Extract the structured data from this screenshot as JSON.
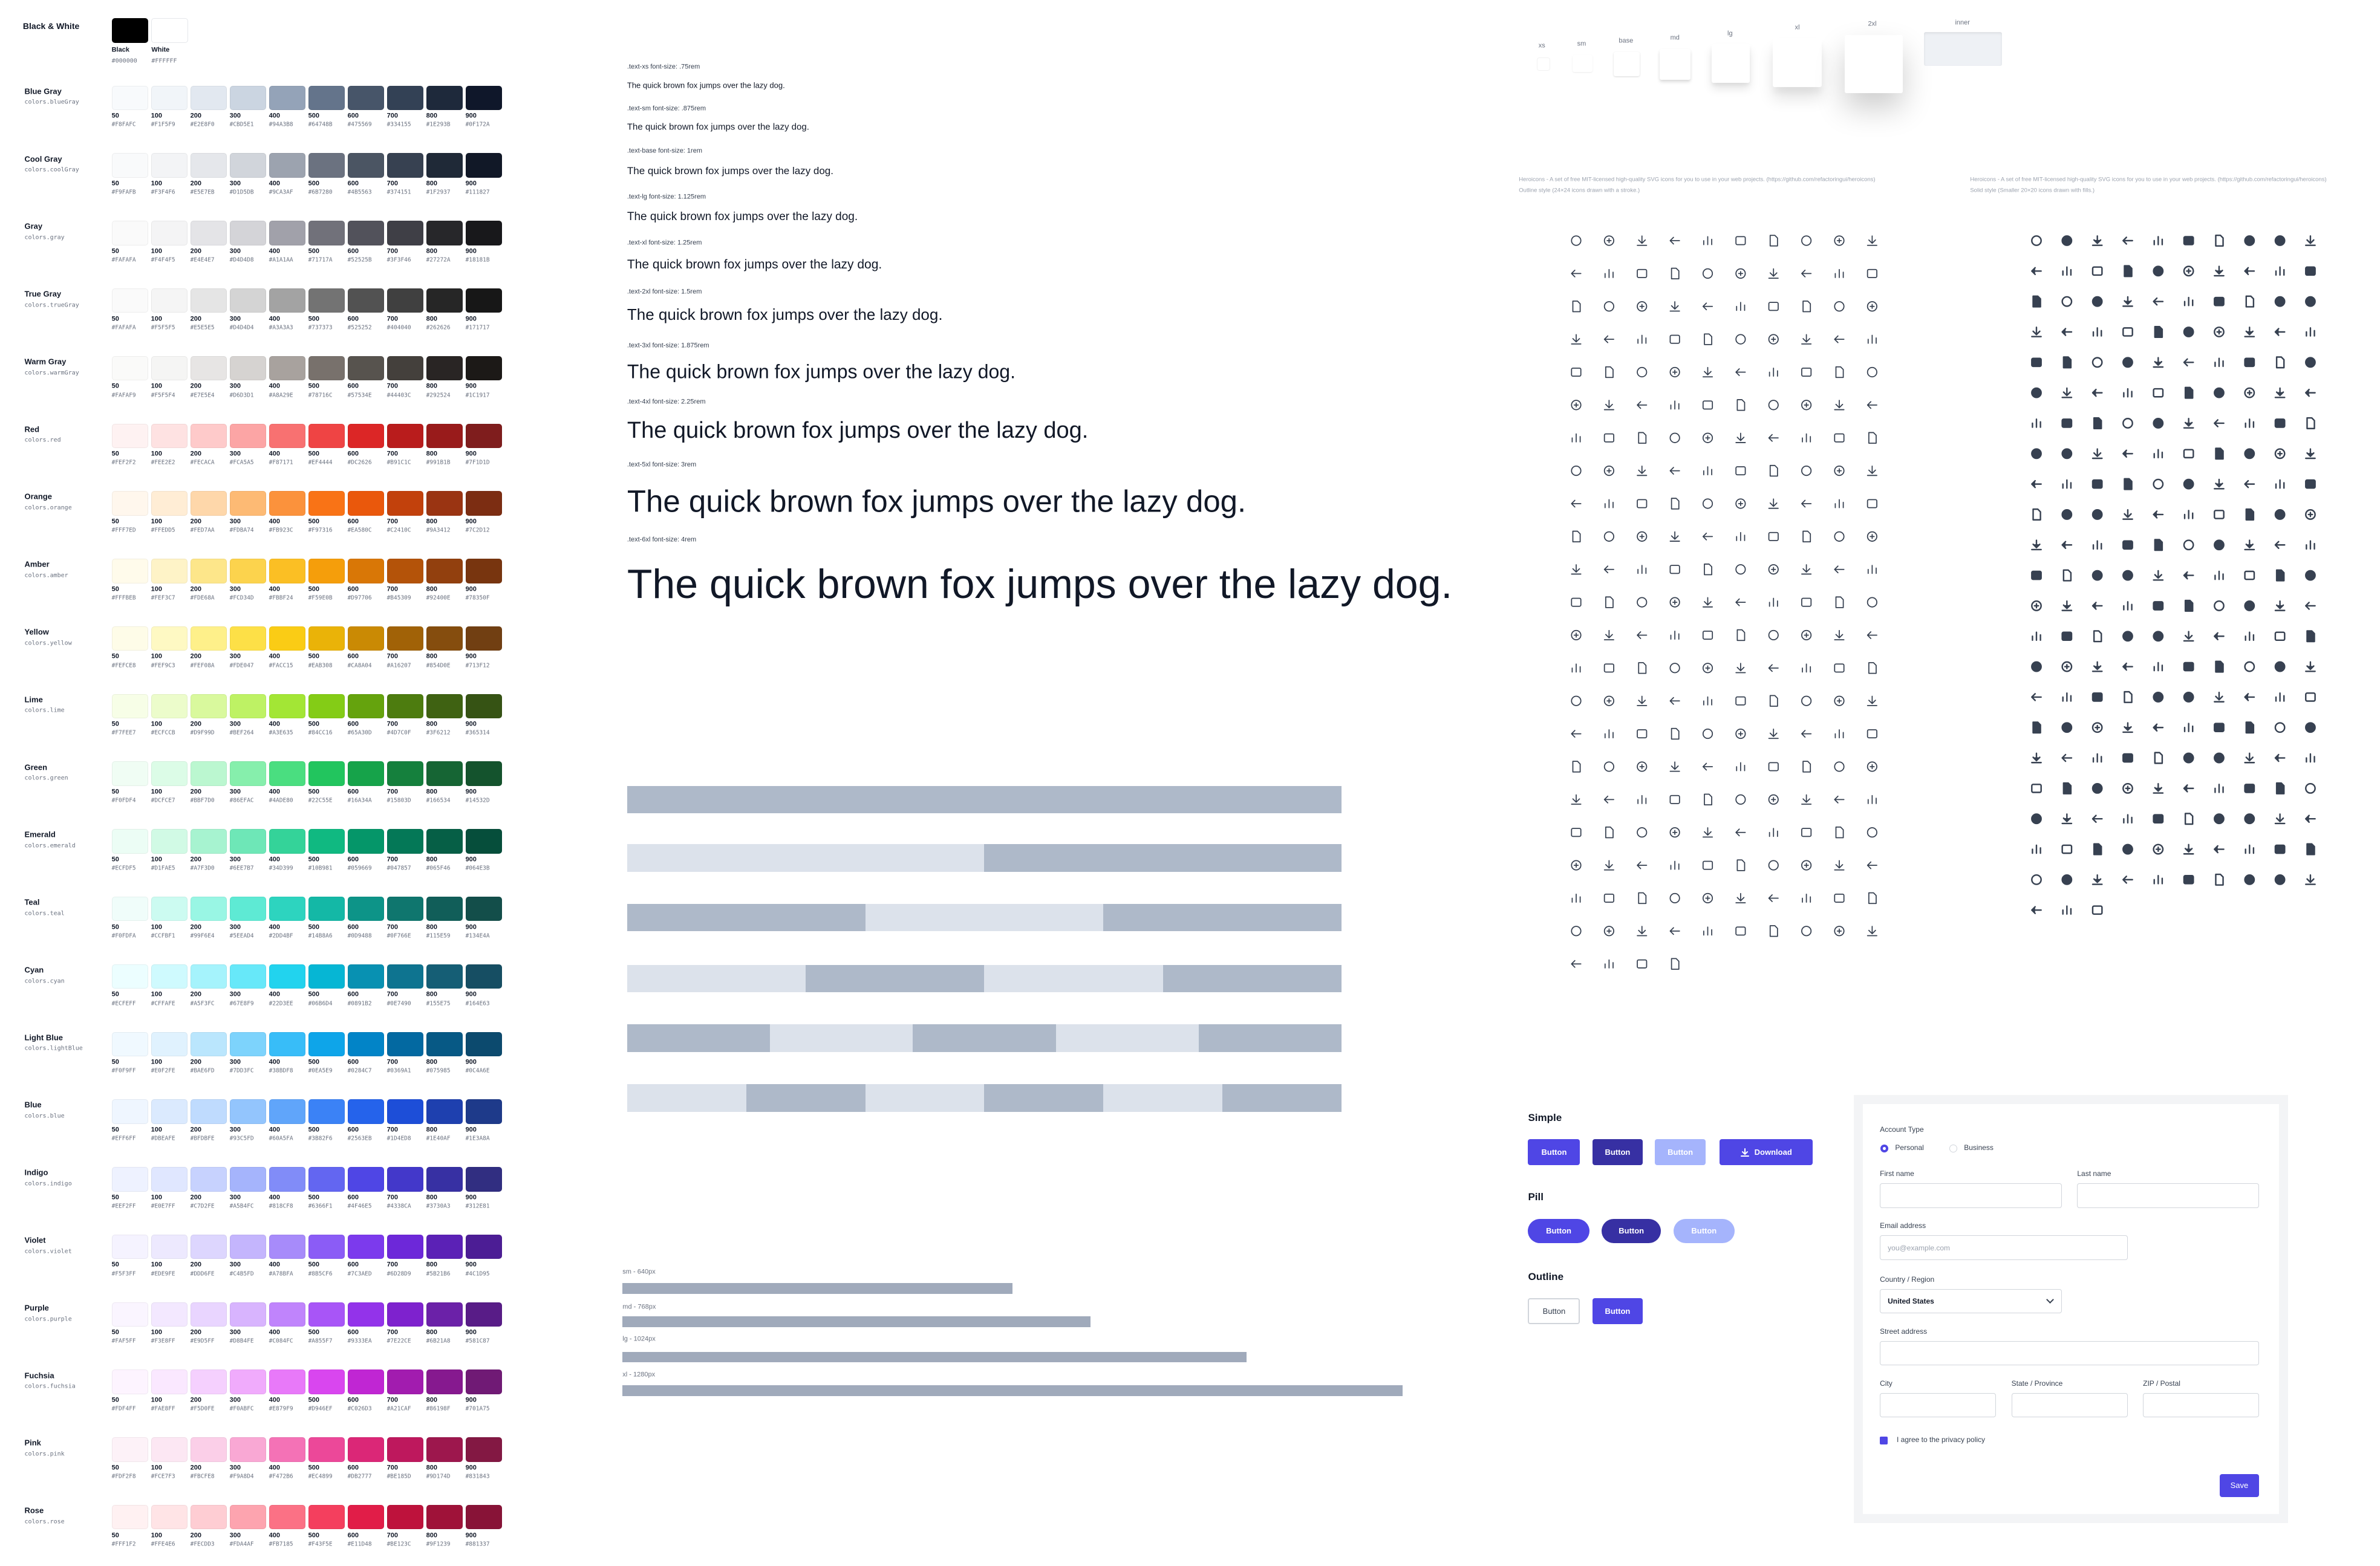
{
  "black_white": {
    "title": "Black & White",
    "swatches": [
      {
        "name": "Black",
        "hex": "#000000"
      },
      {
        "name": "White",
        "hex": "#FFFFFF"
      }
    ]
  },
  "shade_labels": [
    "50",
    "100",
    "200",
    "300",
    "400",
    "500",
    "600",
    "700",
    "800",
    "900"
  ],
  "palettes": [
    {
      "name": "Blue Gray",
      "token": "colors.blueGray",
      "hexes": [
        "#F8FAFC",
        "#F1F5F9",
        "#E2E8F0",
        "#CBD5E1",
        "#94A3B8",
        "#64748B",
        "#475569",
        "#334155",
        "#1E293B",
        "#0F172A"
      ]
    },
    {
      "name": "Cool Gray",
      "token": "colors.coolGray",
      "hexes": [
        "#F9FAFB",
        "#F3F4F6",
        "#E5E7EB",
        "#D1D5DB",
        "#9CA3AF",
        "#6B7280",
        "#4B5563",
        "#374151",
        "#1F2937",
        "#111827"
      ]
    },
    {
      "name": "Gray",
      "token": "colors.gray",
      "hexes": [
        "#FAFAFA",
        "#F4F4F5",
        "#E4E4E7",
        "#D4D4D8",
        "#A1A1AA",
        "#71717A",
        "#52525B",
        "#3F3F46",
        "#27272A",
        "#18181B"
      ]
    },
    {
      "name": "True Gray",
      "token": "colors.trueGray",
      "hexes": [
        "#FAFAFA",
        "#F5F5F5",
        "#E5E5E5",
        "#D4D4D4",
        "#A3A3A3",
        "#737373",
        "#525252",
        "#404040",
        "#262626",
        "#171717"
      ]
    },
    {
      "name": "Warm Gray",
      "token": "colors.warmGray",
      "hexes": [
        "#FAFAF9",
        "#F5F5F4",
        "#E7E5E4",
        "#D6D3D1",
        "#A8A29E",
        "#78716C",
        "#57534E",
        "#44403C",
        "#292524",
        "#1C1917"
      ]
    },
    {
      "name": "Red",
      "token": "colors.red",
      "hexes": [
        "#FEF2F2",
        "#FEE2E2",
        "#FECACA",
        "#FCA5A5",
        "#F87171",
        "#EF4444",
        "#DC2626",
        "#B91C1C",
        "#991B1B",
        "#7F1D1D"
      ]
    },
    {
      "name": "Orange",
      "token": "colors.orange",
      "hexes": [
        "#FFF7ED",
        "#FFEDD5",
        "#FED7AA",
        "#FDBA74",
        "#FB923C",
        "#F97316",
        "#EA580C",
        "#C2410C",
        "#9A3412",
        "#7C2D12"
      ]
    },
    {
      "name": "Amber",
      "token": "colors.amber",
      "hexes": [
        "#FFFBEB",
        "#FEF3C7",
        "#FDE68A",
        "#FCD34D",
        "#FBBF24",
        "#F59E0B",
        "#D97706",
        "#B45309",
        "#92400E",
        "#78350F"
      ]
    },
    {
      "name": "Yellow",
      "token": "colors.yellow",
      "hexes": [
        "#FEFCE8",
        "#FEF9C3",
        "#FEF08A",
        "#FDE047",
        "#FACC15",
        "#EAB308",
        "#CA8A04",
        "#A16207",
        "#854D0E",
        "#713F12"
      ]
    },
    {
      "name": "Lime",
      "token": "colors.lime",
      "hexes": [
        "#F7FEE7",
        "#ECFCCB",
        "#D9F99D",
        "#BEF264",
        "#A3E635",
        "#84CC16",
        "#65A30D",
        "#4D7C0F",
        "#3F6212",
        "#365314"
      ]
    },
    {
      "name": "Green",
      "token": "colors.green",
      "hexes": [
        "#F0FDF4",
        "#DCFCE7",
        "#BBF7D0",
        "#86EFAC",
        "#4ADE80",
        "#22C55E",
        "#16A34A",
        "#15803D",
        "#166534",
        "#14532D"
      ]
    },
    {
      "name": "Emerald",
      "token": "colors.emerald",
      "hexes": [
        "#ECFDF5",
        "#D1FAE5",
        "#A7F3D0",
        "#6EE7B7",
        "#34D399",
        "#10B981",
        "#059669",
        "#047857",
        "#065F46",
        "#064E3B"
      ]
    },
    {
      "name": "Teal",
      "token": "colors.teal",
      "hexes": [
        "#F0FDFA",
        "#CCFBF1",
        "#99F6E4",
        "#5EEAD4",
        "#2DD4BF",
        "#14B8A6",
        "#0D9488",
        "#0F766E",
        "#115E59",
        "#134E4A"
      ]
    },
    {
      "name": "Cyan",
      "token": "colors.cyan",
      "hexes": [
        "#ECFEFF",
        "#CFFAFE",
        "#A5F3FC",
        "#67E8F9",
        "#22D3EE",
        "#06B6D4",
        "#0891B2",
        "#0E7490",
        "#155E75",
        "#164E63"
      ]
    },
    {
      "name": "Light Blue",
      "token": "colors.lightBlue",
      "hexes": [
        "#F0F9FF",
        "#E0F2FE",
        "#BAE6FD",
        "#7DD3FC",
        "#38BDF8",
        "#0EA5E9",
        "#0284C7",
        "#0369A1",
        "#075985",
        "#0C4A6E"
      ]
    },
    {
      "name": "Blue",
      "token": "colors.blue",
      "hexes": [
        "#EFF6FF",
        "#DBEAFE",
        "#BFDBFE",
        "#93C5FD",
        "#60A5FA",
        "#3B82F6",
        "#2563EB",
        "#1D4ED8",
        "#1E40AF",
        "#1E3A8A"
      ]
    },
    {
      "name": "Indigo",
      "token": "colors.indigo",
      "hexes": [
        "#EEF2FF",
        "#E0E7FF",
        "#C7D2FE",
        "#A5B4FC",
        "#818CF8",
        "#6366F1",
        "#4F46E5",
        "#4338CA",
        "#3730A3",
        "#312E81"
      ]
    },
    {
      "name": "Violet",
      "token": "colors.violet",
      "hexes": [
        "#F5F3FF",
        "#EDE9FE",
        "#DDD6FE",
        "#C4B5FD",
        "#A78BFA",
        "#8B5CF6",
        "#7C3AED",
        "#6D28D9",
        "#5B21B6",
        "#4C1D95"
      ]
    },
    {
      "name": "Purple",
      "token": "colors.purple",
      "hexes": [
        "#FAF5FF",
        "#F3E8FF",
        "#E9D5FF",
        "#D8B4FE",
        "#C084FC",
        "#A855F7",
        "#9333EA",
        "#7E22CE",
        "#6B21A8",
        "#581C87"
      ]
    },
    {
      "name": "Fuchsia",
      "token": "colors.fuchsia",
      "hexes": [
        "#FDF4FF",
        "#FAE8FF",
        "#F5D0FE",
        "#F0ABFC",
        "#E879F9",
        "#D946EF",
        "#C026D3",
        "#A21CAF",
        "#86198F",
        "#701A75"
      ]
    },
    {
      "name": "Pink",
      "token": "colors.pink",
      "hexes": [
        "#FDF2F8",
        "#FCE7F3",
        "#FBCFE8",
        "#F9A8D4",
        "#F472B6",
        "#EC4899",
        "#DB2777",
        "#BE185D",
        "#9D174D",
        "#831843"
      ]
    },
    {
      "name": "Rose",
      "token": "colors.rose",
      "hexes": [
        "#FFF1F2",
        "#FFE4E6",
        "#FECDD3",
        "#FDA4AF",
        "#FB7185",
        "#F43F5E",
        "#E11D48",
        "#BE123C",
        "#9F1239",
        "#881337"
      ]
    }
  ],
  "typography": [
    {
      "label": ".text-xs font-size: .75rem",
      "sample": "The quick brown fox jumps over the lazy dog."
    },
    {
      "label": ".text-sm font-size: .875rem",
      "sample": "The quick brown fox jumps over the lazy dog."
    },
    {
      "label": ".text-base font-size: 1rem",
      "sample": "The quick brown fox jumps over the lazy dog."
    },
    {
      "label": ".text-lg font-size: 1.125rem",
      "sample": "The quick brown fox jumps over the lazy dog."
    },
    {
      "label": ".text-xl font-size: 1.25rem",
      "sample": "The quick brown fox jumps over the lazy dog."
    },
    {
      "label": ".text-2xl font-size: 1.5rem",
      "sample": "The quick brown fox jumps over the lazy dog."
    },
    {
      "label": ".text-3xl font-size: 1.875rem",
      "sample": "The quick brown fox jumps over the lazy dog."
    },
    {
      "label": ".text-4xl font-size: 2.25rem",
      "sample": "The quick brown fox jumps over the lazy dog."
    },
    {
      "label": ".text-5xl font-size: 3rem",
      "sample": "The quick brown fox jumps over the lazy dog."
    },
    {
      "label": ".text-6xl font-size: 4rem",
      "sample": "The quick brown fox jumps over the lazy dog."
    }
  ],
  "containers": [
    "sm - 640px",
    "md - 768px",
    "lg - 1024px",
    "xl - 1280px"
  ],
  "shadows": [
    "xs",
    "sm",
    "base",
    "md",
    "lg",
    "xl",
    "2xl",
    "inner"
  ],
  "heroicons": {
    "outline": {
      "description": "Heroicons - A set of free MIT-licensed high-quality SVG icons for you to use in your web projects. (https://github.com/refactoringui/heroicons)",
      "style": "Outline style (24×24 icons drawn with a stroke.)"
    },
    "solid": {
      "description": "Heroicons - A set of free MIT-licensed high-quality SVG icons for you to use in your web projects. (https://github.com/refactoringui/heroicons)",
      "style": "Solid style (Smaller 20×20 icons drawn with fills.)"
    }
  },
  "buttons": {
    "simple": {
      "title": "Simple",
      "labels": [
        "Button",
        "Button",
        "Button",
        "Download"
      ]
    },
    "pill": {
      "title": "Pill",
      "labels": [
        "Button",
        "Button",
        "Button"
      ]
    },
    "outline": {
      "title": "Outline",
      "labels": [
        "Button",
        "Button"
      ]
    }
  },
  "form": {
    "account_type": "Account Type",
    "options": [
      "Personal",
      "Business"
    ],
    "first_name": "First name",
    "last_name": "Last name",
    "email": "Email address",
    "email_placeholder": "you@example.com",
    "country": "Country / Region",
    "country_value": "United States",
    "street": "Street address",
    "city": "City",
    "state": "State / Province",
    "zip": "ZIP / Postal",
    "agree": "I agree to the privacy policy",
    "save": "Save"
  }
}
